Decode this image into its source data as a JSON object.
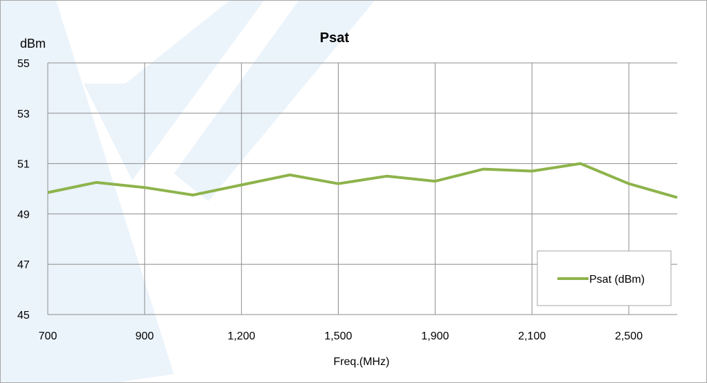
{
  "chart_data": {
    "type": "line",
    "title": "Psat",
    "ylabel": "dBm",
    "xlabel": "Freq.(MHz)",
    "ylim": [
      45,
      55
    ],
    "y_ticks": [
      45,
      47,
      49,
      51,
      53,
      55
    ],
    "x_tick_labels": [
      "700",
      "900",
      "1,200",
      "1,500",
      "1,900",
      "2,100",
      "2,500"
    ],
    "grid": true,
    "legend_position": "bottom-right",
    "series": [
      {
        "name": "Psat (dBm)",
        "color": "#8db34b",
        "values": [
          49.85,
          50.25,
          50.05,
          49.75,
          50.15,
          50.55,
          50.2,
          50.5,
          50.3,
          50.78,
          50.7,
          51.0,
          50.2,
          49.65
        ]
      }
    ]
  }
}
